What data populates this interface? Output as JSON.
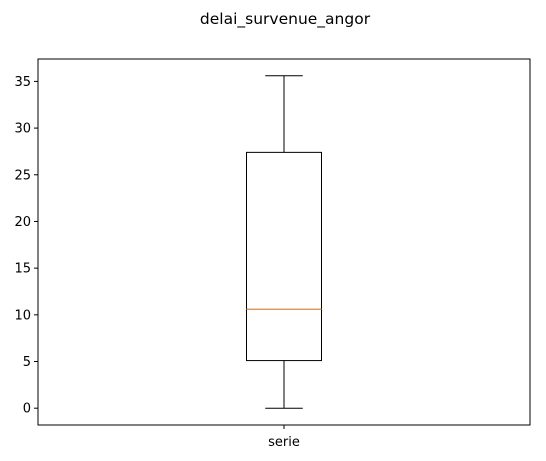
{
  "chart_data": {
    "type": "box",
    "title": "delai_survenue_angor",
    "xlabel": "",
    "ylabel": "",
    "categories": [
      "serie"
    ],
    "boxes": [
      {
        "category": "serie",
        "whisker_low": 0,
        "q1": 5.1,
        "median": 10.6,
        "q3": 27.4,
        "whisker_high": 35.6
      }
    ],
    "ylim": [
      -1.8,
      37.4
    ],
    "yticks": [
      0,
      5,
      10,
      15,
      20,
      25,
      30,
      35
    ],
    "grid": false,
    "colors": {
      "box": "#000000",
      "median": "#ff7f0e",
      "axes": "#000000"
    }
  }
}
